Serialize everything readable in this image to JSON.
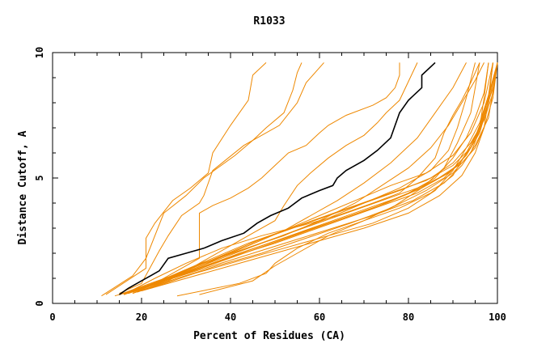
{
  "chart_data": {
    "type": "line",
    "title": "R1033",
    "xlabel": "Percent of Residues (CA)",
    "ylabel": "Distance Cutoff, A",
    "xlim": [
      0,
      100
    ],
    "ylim": [
      0,
      10
    ],
    "x_ticks": [
      {
        "value": 0,
        "label": "0"
      },
      {
        "value": 20,
        "label": "20"
      },
      {
        "value": 40,
        "label": "40"
      },
      {
        "value": 60,
        "label": "60"
      },
      {
        "value": 80,
        "label": "80"
      },
      {
        "value": 100,
        "label": "100"
      }
    ],
    "y_ticks": [
      {
        "value": 0,
        "label": "0"
      },
      {
        "value": 5,
        "label": "5"
      },
      {
        "value": 10,
        "label": "10"
      }
    ],
    "grid": false,
    "colors": {
      "highlight": "#000000",
      "others": "#ee8800"
    },
    "highlight": {
      "name": "highlighted model",
      "x": [
        15,
        17,
        20,
        22,
        24,
        26,
        30,
        34,
        38,
        43,
        46,
        49,
        53,
        56,
        60,
        63,
        64,
        66,
        70,
        73,
        76,
        78,
        80,
        83,
        83,
        86
      ],
      "y": [
        0.35,
        0.6,
        0.9,
        1.1,
        1.3,
        1.8,
        2.0,
        2.2,
        2.5,
        2.8,
        3.2,
        3.5,
        3.8,
        4.2,
        4.5,
        4.7,
        5.0,
        5.3,
        5.7,
        6.1,
        6.6,
        7.6,
        8.1,
        8.6,
        9.1,
        9.6
      ]
    },
    "series": [
      {
        "x": [
          12,
          21,
          21,
          23,
          27,
          31,
          35,
          36,
          40,
          44,
          45,
          48
        ],
        "y": [
          0.35,
          1.4,
          2.6,
          3.2,
          4.1,
          4.6,
          5.2,
          6.0,
          7.1,
          8.1,
          9.1,
          9.6
        ]
      },
      {
        "x": [
          11,
          18,
          21,
          25,
          30,
          34,
          41,
          45,
          48,
          52,
          54,
          55,
          56
        ],
        "y": [
          0.3,
          1.1,
          1.8,
          3.6,
          4.3,
          5.0,
          5.9,
          6.5,
          7.0,
          7.6,
          8.5,
          9.2,
          9.6
        ]
      },
      {
        "x": [
          15,
          20,
          24,
          26,
          29,
          33,
          34,
          36,
          43,
          51,
          55,
          57,
          61
        ],
        "y": [
          0.4,
          0.8,
          2.1,
          2.7,
          3.5,
          4.0,
          4.3,
          5.3,
          6.3,
          7.1,
          8.0,
          8.8,
          9.6
        ]
      },
      {
        "x": [
          16,
          24,
          33,
          33,
          36,
          40,
          44,
          47,
          50,
          53,
          57,
          60,
          62,
          66,
          72,
          75,
          77,
          78,
          78
        ],
        "y": [
          0.35,
          0.9,
          1.8,
          3.6,
          3.9,
          4.2,
          4.6,
          5.0,
          5.5,
          6.0,
          6.3,
          6.8,
          7.1,
          7.5,
          7.9,
          8.2,
          8.6,
          9.1,
          9.6
        ]
      },
      {
        "x": [
          18,
          26,
          33,
          40,
          46,
          50,
          52,
          55,
          58,
          62,
          66,
          70,
          73,
          75,
          78,
          82
        ],
        "y": [
          0.4,
          0.9,
          1.6,
          2.3,
          2.9,
          3.3,
          3.9,
          4.7,
          5.2,
          5.8,
          6.3,
          6.7,
          7.2,
          7.6,
          8.1,
          9.6
        ]
      },
      {
        "x": [
          16,
          23,
          30,
          38,
          47,
          56,
          64,
          72,
          78,
          82,
          86,
          88,
          90,
          92,
          94,
          96
        ],
        "y": [
          0.35,
          1.0,
          1.6,
          2.2,
          2.7,
          3.1,
          3.5,
          4.0,
          4.4,
          5.0,
          5.8,
          6.8,
          7.5,
          8.1,
          8.8,
          9.6
        ]
      },
      {
        "x": [
          17,
          25,
          33,
          42,
          52,
          62,
          72,
          80,
          86,
          90,
          93,
          95,
          97,
          98
        ],
        "y": [
          0.4,
          0.9,
          1.4,
          2.0,
          2.6,
          3.2,
          3.8,
          4.4,
          5.0,
          5.8,
          6.6,
          7.4,
          8.4,
          9.6
        ]
      },
      {
        "x": [
          15,
          21,
          27,
          34,
          42,
          50,
          58,
          66,
          74,
          82,
          88,
          92,
          95,
          97,
          99,
          100
        ],
        "y": [
          0.35,
          0.7,
          1.1,
          1.6,
          2.1,
          2.6,
          3.1,
          3.6,
          4.1,
          4.6,
          5.1,
          5.6,
          6.2,
          7.0,
          8.2,
          9.6
        ]
      },
      {
        "x": [
          16,
          23,
          31,
          39,
          47,
          55,
          63,
          71,
          79,
          86,
          91,
          94,
          96,
          98,
          99
        ],
        "y": [
          0.4,
          0.8,
          1.3,
          1.8,
          2.3,
          2.8,
          3.3,
          3.8,
          4.3,
          4.9,
          5.5,
          6.2,
          7.1,
          8.3,
          9.6
        ]
      },
      {
        "x": [
          17,
          26,
          35,
          44,
          53,
          62,
          70,
          78,
          85,
          89,
          91,
          93,
          95
        ],
        "y": [
          0.4,
          1.0,
          1.6,
          2.2,
          2.8,
          3.4,
          4.0,
          4.6,
          5.3,
          6.1,
          7.0,
          8.2,
          9.6
        ]
      },
      {
        "x": [
          18,
          27,
          36,
          45,
          54,
          63,
          72,
          81,
          88,
          92,
          95,
          98,
          99,
          100
        ],
        "y": [
          0.45,
          1.0,
          1.5,
          2.0,
          2.5,
          3.0,
          3.5,
          4.1,
          4.8,
          5.5,
          6.3,
          7.4,
          8.5,
          9.6
        ]
      },
      {
        "x": [
          20,
          30,
          40,
          50,
          60,
          70,
          80,
          87,
          92,
          95,
          97,
          98,
          99
        ],
        "y": [
          0.5,
          1.0,
          1.5,
          2.0,
          2.5,
          3.0,
          3.6,
          4.3,
          5.1,
          6.0,
          7.0,
          8.2,
          9.6
        ]
      },
      {
        "x": [
          22,
          32,
          42,
          52,
          62,
          72,
          80,
          86,
          90,
          93,
          96,
          98,
          100
        ],
        "y": [
          0.6,
          1.2,
          1.7,
          2.2,
          2.7,
          3.2,
          3.8,
          4.5,
          5.3,
          6.2,
          7.2,
          8.3,
          9.6
        ]
      },
      {
        "x": [
          16,
          22,
          28,
          36,
          44,
          52,
          60,
          68,
          76,
          84,
          90,
          94,
          96,
          97,
          98
        ],
        "y": [
          0.35,
          0.7,
          1.2,
          1.8,
          2.4,
          2.9,
          3.4,
          3.9,
          4.4,
          4.9,
          5.5,
          6.2,
          7.0,
          8.2,
          9.6
        ]
      },
      {
        "x": [
          14,
          20,
          27,
          35,
          43,
          51,
          59,
          67,
          75,
          83,
          89,
          93,
          96,
          98,
          100
        ],
        "y": [
          0.3,
          0.6,
          1.0,
          1.5,
          2.0,
          2.5,
          3.0,
          3.5,
          4.0,
          4.6,
          5.2,
          5.9,
          6.8,
          8.0,
          9.6
        ]
      },
      {
        "x": [
          20,
          28,
          36,
          44,
          52,
          60,
          68,
          76,
          84,
          90,
          94,
          97,
          99
        ],
        "y": [
          0.5,
          1.1,
          1.7,
          2.3,
          2.9,
          3.5,
          4.1,
          4.7,
          5.2,
          5.9,
          6.8,
          8.0,
          9.6
        ]
      },
      {
        "x": [
          15,
          22,
          30,
          38,
          46,
          54,
          62,
          70,
          78,
          85,
          90,
          94,
          97,
          99,
          100
        ],
        "y": [
          0.35,
          0.8,
          1.3,
          1.9,
          2.5,
          3.0,
          3.5,
          4.0,
          4.5,
          5.0,
          5.6,
          6.4,
          7.3,
          8.4,
          9.6
        ]
      },
      {
        "x": [
          17,
          25,
          33,
          41,
          50,
          58,
          66,
          74,
          82,
          88,
          92,
          95,
          97,
          99,
          100
        ],
        "y": [
          0.4,
          0.9,
          1.4,
          1.9,
          2.4,
          2.9,
          3.4,
          3.9,
          4.4,
          5.0,
          5.7,
          6.5,
          7.5,
          8.6,
          9.6
        ]
      },
      {
        "x": [
          28,
          42,
          48,
          50,
          55,
          62,
          70,
          78,
          85,
          90,
          93,
          96,
          98,
          100
        ],
        "y": [
          0.3,
          0.8,
          1.2,
          1.6,
          2.2,
          2.8,
          3.3,
          3.8,
          4.4,
          5.1,
          6.0,
          7.0,
          8.2,
          9.6
        ]
      },
      {
        "x": [
          33,
          45,
          50,
          55,
          62,
          70,
          77,
          83,
          88,
          91,
          94,
          96
        ],
        "y": [
          0.35,
          0.9,
          1.5,
          2.0,
          2.7,
          3.3,
          3.9,
          4.6,
          5.4,
          6.4,
          7.6,
          9.6
        ]
      },
      {
        "x": [
          16,
          24,
          32,
          42,
          52,
          60,
          68,
          74,
          80,
          85,
          89,
          92,
          95,
          97
        ],
        "y": [
          0.35,
          0.9,
          1.5,
          2.1,
          2.7,
          3.3,
          4.0,
          4.7,
          5.4,
          6.2,
          7.1,
          8.0,
          8.9,
          9.6
        ]
      },
      {
        "x": [
          18,
          26,
          34,
          44,
          52,
          58,
          64,
          70,
          76,
          82,
          86,
          90,
          93
        ],
        "y": [
          0.4,
          1.0,
          1.6,
          2.3,
          2.9,
          3.5,
          4.1,
          4.8,
          5.6,
          6.6,
          7.6,
          8.6,
          9.6
        ]
      },
      {
        "x": [
          19,
          28,
          37,
          47,
          57,
          67,
          76,
          84,
          90,
          94,
          96,
          98,
          99
        ],
        "y": [
          0.45,
          1.0,
          1.5,
          2.0,
          2.6,
          3.2,
          3.8,
          4.5,
          5.2,
          6.0,
          6.9,
          8.0,
          9.6
        ]
      }
    ]
  }
}
